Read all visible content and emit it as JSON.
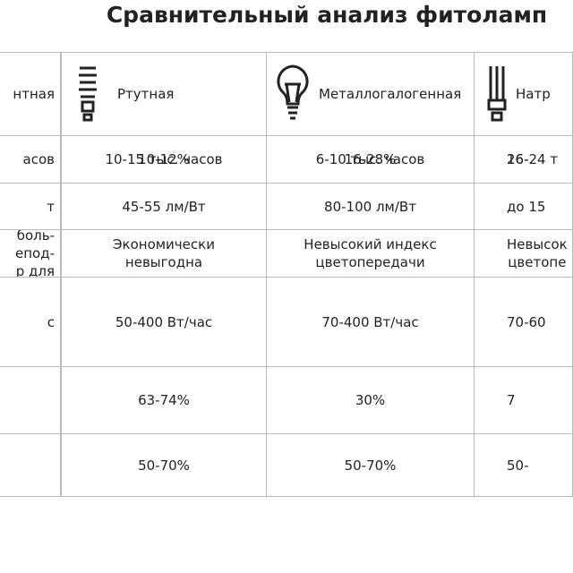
{
  "header": {
    "title": "Сравнительный анализ фитоламп"
  },
  "table": {
    "columns": [
      "нтная",
      "Ртутная",
      "Металлогалогенная",
      "Натр"
    ],
    "rows": [
      [
        null,
        "10-12%",
        "16-28%",
        "26-"
      ],
      [
        "асов",
        "10-15 тыс. часов",
        "6-10 тыс. часов",
        "16-24 т"
      ],
      [
        "т",
        "45-55 лм/Вт",
        "80-100 лм/Вт",
        "до 15"
      ],
      [
        "боль-\nепод-\nр для",
        "Экономически\nневыгодна",
        "Невысокий индекс\nцветопередачи",
        "Невысок\nцветопе"
      ],
      [
        "с",
        "50-400 Вт/час",
        "70-400 Вт/час",
        "70-60"
      ],
      [
        null,
        "63-74%",
        "30%",
        "7"
      ],
      [
        null,
        "50-70%",
        "50-70%",
        "50-"
      ]
    ]
  }
}
